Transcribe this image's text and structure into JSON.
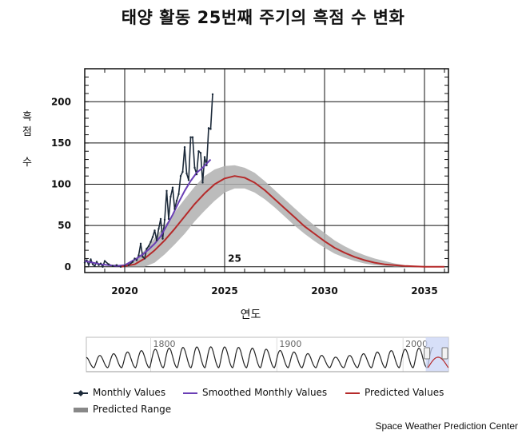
{
  "title": "태양 활동 25번째 주기의 흑점 수 변화",
  "credit": "Space Weather Prediction Center",
  "chart_data": {
    "type": "line",
    "title": "태양 활동 25번째 주기의 흑점 수 변화",
    "xlabel": "연도",
    "ylabel": "흑점 수",
    "xlim": [
      2018,
      2036.2
    ],
    "ylim": [
      -7,
      240
    ],
    "x_ticks": [
      2020,
      2025,
      2030,
      2035
    ],
    "y_ticks": [
      0,
      50,
      100,
      150,
      200
    ],
    "grid": true,
    "annotation": "25",
    "series": [
      {
        "name": "Monthly Values",
        "color": "#1c2a3a",
        "x": [
          2018.0,
          2018.1,
          2018.2,
          2018.3,
          2018.4,
          2018.5,
          2018.6,
          2018.7,
          2018.8,
          2018.9,
          2019.0,
          2019.2,
          2019.4,
          2019.6,
          2019.8,
          2020.0,
          2020.2,
          2020.4,
          2020.5,
          2020.6,
          2020.7,
          2020.8,
          2020.9,
          2021.0,
          2021.1,
          2021.2,
          2021.3,
          2021.4,
          2021.5,
          2021.6,
          2021.7,
          2021.8,
          2021.9,
          2022.0,
          2022.1,
          2022.2,
          2022.3,
          2022.4,
          2022.5,
          2022.6,
          2022.7,
          2022.8,
          2022.9,
          2023.0,
          2023.1,
          2023.2,
          2023.3,
          2023.4,
          2023.5,
          2023.6,
          2023.7,
          2023.8,
          2023.9,
          2024.0,
          2024.1,
          2024.2,
          2024.3,
          2024.4
        ],
        "values": [
          5,
          8,
          2,
          9,
          3,
          1,
          6,
          2,
          4,
          0,
          7,
          3,
          1,
          2,
          0,
          1,
          2,
          6,
          10,
          8,
          14,
          28,
          12,
          10,
          22,
          25,
          30,
          36,
          44,
          32,
          46,
          58,
          34,
          57,
          92,
          58,
          85,
          96,
          70,
          80,
          88,
          110,
          115,
          145,
          113,
          105,
          157,
          157,
          120,
          112,
          140,
          138,
          102,
          133,
          123,
          168,
          167,
          209
        ]
      },
      {
        "name": "Smoothed Monthly Values",
        "color": "#6a3fb5",
        "x": [
          2018.0,
          2018.4,
          2018.8,
          2019.2,
          2019.6,
          2020.0,
          2020.3,
          2020.6,
          2020.9,
          2021.2,
          2021.5,
          2021.8,
          2022.1,
          2022.4,
          2022.7,
          2023.0,
          2023.3,
          2023.6,
          2023.9,
          2024.1,
          2024.3
        ],
        "values": [
          7,
          5,
          3,
          2,
          1,
          2,
          6,
          10,
          15,
          21,
          28,
          37,
          50,
          63,
          78,
          92,
          104,
          114,
          120,
          125,
          130
        ]
      },
      {
        "name": "Predicted Values",
        "color": "#b52a2a",
        "x": [
          2019.8,
          2020.5,
          2021.0,
          2021.5,
          2022.0,
          2022.5,
          2023.0,
          2023.5,
          2024.0,
          2024.5,
          2025.0,
          2025.5,
          2026.0,
          2026.5,
          2027.0,
          2027.5,
          2028.0,
          2028.5,
          2029.0,
          2029.5,
          2030.0,
          2030.5,
          2031.0,
          2031.5,
          2032.0,
          2032.5,
          2033.0,
          2033.5,
          2034.0,
          2034.5,
          2035.0,
          2035.5,
          2036.0
        ],
        "values": [
          0,
          3,
          10,
          20,
          32,
          46,
          61,
          76,
          89,
          100,
          107,
          110,
          108,
          102,
          93,
          82,
          71,
          60,
          49,
          40,
          31,
          23,
          17,
          12,
          8,
          5,
          3,
          2,
          1,
          0.5,
          0,
          0,
          0
        ]
      }
    ],
    "predicted_range": {
      "name": "Predicted Range",
      "color": "#b0b0b0",
      "x": [
        2019.8,
        2020.5,
        2021.0,
        2021.5,
        2022.0,
        2022.5,
        2023.0,
        2023.5,
        2024.0,
        2024.5,
        2025.0,
        2025.5,
        2026.0,
        2026.5,
        2027.0,
        2027.5,
        2028.0,
        2028.5,
        2029.0,
        2029.5,
        2030.0,
        2030.5,
        2031.0,
        2031.5,
        2032.0,
        2032.5,
        2033.0,
        2033.5,
        2034.0,
        2034.5,
        2035.0,
        2035.5,
        2036.0
      ],
      "lower": [
        0,
        0,
        0,
        5,
        15,
        27,
        40,
        55,
        68,
        80,
        90,
        95,
        95,
        90,
        82,
        72,
        61,
        50,
        40,
        31,
        23,
        16,
        11,
        7,
        4,
        2,
        1,
        0,
        0,
        0,
        0,
        0,
        0
      ],
      "upper": [
        0,
        8,
        20,
        35,
        50,
        66,
        82,
        97,
        110,
        118,
        122,
        123,
        120,
        114,
        104,
        93,
        82,
        71,
        60,
        50,
        41,
        32,
        25,
        19,
        14,
        10,
        7,
        4,
        2,
        1,
        0,
        0,
        0
      ]
    }
  },
  "navigator": {
    "labels": [
      "1800",
      "1900",
      "2000"
    ]
  },
  "legend": [
    {
      "label": "Monthly Values",
      "color": "#1c2a3a",
      "kind": "marker-line"
    },
    {
      "label": "Smoothed Monthly Values",
      "color": "#6a3fb5",
      "kind": "line"
    },
    {
      "label": "Predicted Values",
      "color": "#b52a2a",
      "kind": "line"
    },
    {
      "label": "Predicted Range",
      "color": "#888888",
      "kind": "band"
    }
  ]
}
